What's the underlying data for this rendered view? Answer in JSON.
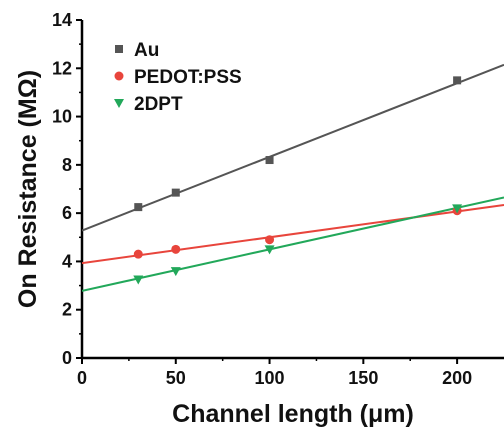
{
  "chart_data": {
    "type": "scatter",
    "title": "",
    "xlabel": "Channel length (μm)",
    "ylabel": "On Resistance (MΩ)",
    "xlim": [
      0,
      225
    ],
    "ylim": [
      0,
      14
    ],
    "xticks": [
      0,
      50,
      100,
      150,
      200
    ],
    "yticks": [
      0,
      2,
      4,
      6,
      8,
      10,
      12,
      14
    ],
    "grid": false,
    "legend_position": "top-left",
    "series": [
      {
        "name": "Au",
        "color": "#555555",
        "marker": "square",
        "x": [
          30,
          50,
          100,
          200
        ],
        "y": [
          6.25,
          6.85,
          8.2,
          11.5
        ],
        "fit": {
          "intercept": 5.28,
          "slope": 0.0305
        }
      },
      {
        "name": "PEDOT:PSS",
        "color": "#e8453c",
        "marker": "circle",
        "x": [
          30,
          50,
          100,
          200
        ],
        "y": [
          4.3,
          4.5,
          4.9,
          6.1
        ],
        "fit": {
          "intercept": 3.93,
          "slope": 0.0107
        }
      },
      {
        "name": "2DPT",
        "color": "#22a85a",
        "marker": "triangle-down",
        "x": [
          30,
          50,
          100,
          200
        ],
        "y": [
          3.25,
          3.6,
          4.5,
          6.2
        ],
        "fit": {
          "intercept": 2.78,
          "slope": 0.0172
        }
      }
    ]
  }
}
